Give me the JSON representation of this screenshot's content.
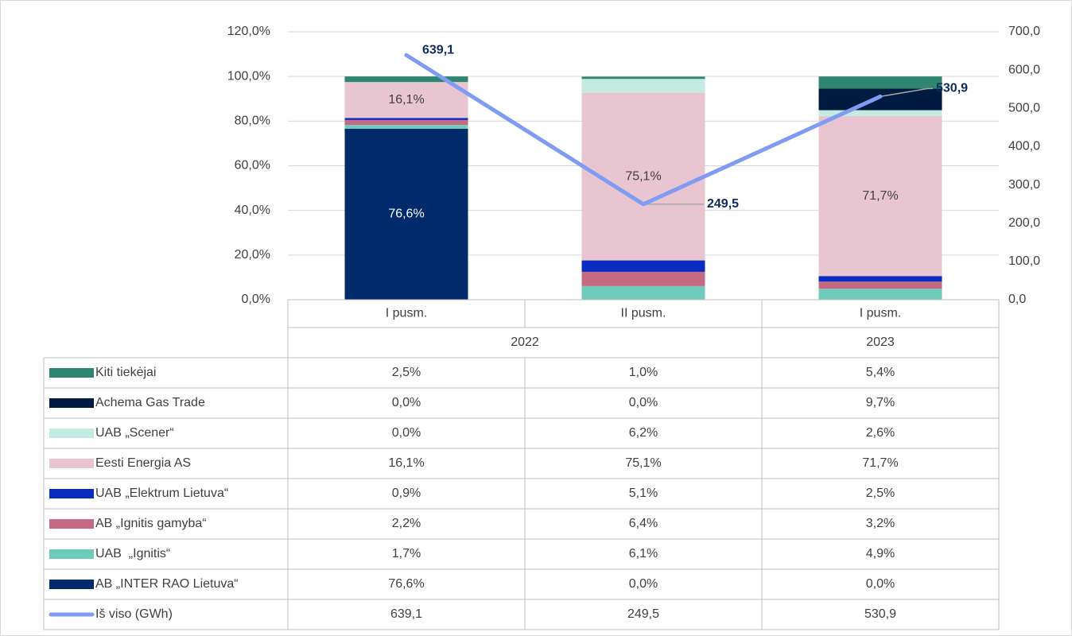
{
  "chart_data": {
    "type": "bar",
    "stacked": true,
    "categories": [
      "I pusm.",
      "II pusm.",
      "I pusm."
    ],
    "x_groups": [
      "2022",
      "2022",
      "2023"
    ],
    "ylim": [
      0,
      120
    ],
    "yticks": [
      {
        "value": 0,
        "label": "0,0%"
      },
      {
        "value": 20,
        "label": "20,0%"
      },
      {
        "value": 40,
        "label": "40,0%"
      },
      {
        "value": 60,
        "label": "60,0%"
      },
      {
        "value": 80,
        "label": "80,0%"
      },
      {
        "value": 100,
        "label": "100,0%"
      },
      {
        "value": 120,
        "label": "120,0%"
      }
    ],
    "y2lim": [
      0,
      700
    ],
    "y2ticks": [
      {
        "value": 0,
        "label": "0,0"
      },
      {
        "value": 100,
        "label": "100,0"
      },
      {
        "value": 200,
        "label": "200,0"
      },
      {
        "value": 300,
        "label": "300,0"
      },
      {
        "value": 400,
        "label": "400,0"
      },
      {
        "value": 500,
        "label": "500,0"
      },
      {
        "value": 600,
        "label": "600,0"
      },
      {
        "value": 700,
        "label": "700,0"
      }
    ],
    "grid": true,
    "data_table": true,
    "series": [
      {
        "name": "Kiti tiekėjai",
        "color": "#2e8570",
        "values": [
          2.5,
          1.0,
          5.4
        ],
        "value_labels": [
          "2,5%",
          "1,0%",
          "5,4%"
        ]
      },
      {
        "name": "Achema Gas Trade",
        "color": "#001a40",
        "values": [
          0.0,
          0.0,
          9.7
        ],
        "value_labels": [
          "0,0%",
          "0,0%",
          "9,7%"
        ]
      },
      {
        "name": "UAB „Scener“",
        "color": "#c3ebe2",
        "values": [
          0.0,
          6.2,
          2.6
        ],
        "value_labels": [
          "0,0%",
          "6,2%",
          "2,6%"
        ]
      },
      {
        "name": "Eesti Energia AS",
        "color": "#e8c5d1",
        "values": [
          16.1,
          75.1,
          71.7
        ],
        "value_labels": [
          "16,1%",
          "75,1%",
          "71,7%"
        ],
        "label_color": "#404040"
      },
      {
        "name": "UAB „Elektrum Lietuva“",
        "color": "#0a2bbf",
        "values": [
          0.9,
          5.1,
          2.5
        ],
        "value_labels": [
          "0,9%",
          "5,1%",
          "2,5%"
        ]
      },
      {
        "name": "AB „Ignitis gamyba“",
        "color": "#c46a82",
        "values": [
          2.2,
          6.4,
          3.2
        ],
        "value_labels": [
          "2,2%",
          "6,4%",
          "3,2%"
        ]
      },
      {
        "name": "UAB  „Ignitis“",
        "color": "#6fcbb9",
        "values": [
          1.7,
          6.1,
          4.9
        ],
        "value_labels": [
          "1,7%",
          "6,1%",
          "4,9%"
        ]
      },
      {
        "name": "AB „INTER RAO Lietuva“",
        "color": "#002a6b",
        "values": [
          76.6,
          0.0,
          0.0
        ],
        "value_labels": [
          "76,6%",
          "0,0%",
          "0,0%"
        ],
        "label_color": "#ffffff"
      },
      {
        "name": "Iš viso (GWh)",
        "type": "line",
        "axis": "y2",
        "color": "#7f9cf2",
        "values": [
          639.1,
          249.5,
          530.9
        ],
        "value_labels": [
          "639,1",
          "249,5",
          "530,9"
        ],
        "label_color": "#0f2a5e"
      }
    ]
  }
}
